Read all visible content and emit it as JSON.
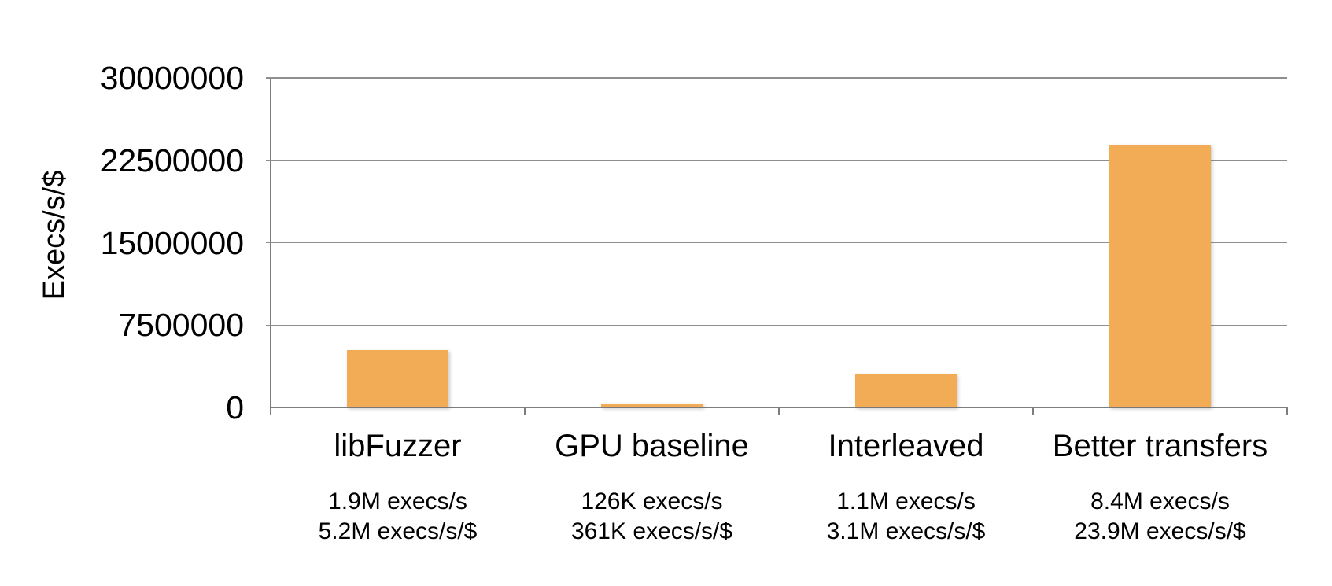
{
  "chart_data": {
    "type": "bar",
    "title": "",
    "ylabel": "Execs/s/$",
    "xlabel": "",
    "ylim": [
      0,
      30000000
    ],
    "grid": true,
    "legend": "none",
    "yticks": [
      {
        "label": "30000000",
        "value": 30000000
      },
      {
        "label": "22500000",
        "value": 22500000
      },
      {
        "label": "15000000",
        "value": 15000000
      },
      {
        "label": "7500000",
        "value": 7500000
      },
      {
        "label": "0",
        "value": 0
      }
    ],
    "categories": [
      "libFuzzer",
      "GPU baseline",
      "Interleaved",
      "Better transfers"
    ],
    "values": [
      5200000,
      361000,
      3100000,
      23900000
    ],
    "series": [
      {
        "name": "Execs/s/$",
        "values": [
          5200000,
          361000,
          3100000,
          23900000
        ]
      }
    ],
    "annotations": [
      {
        "line1": "1.9M execs/s",
        "line2": "5.2M execs/s/$"
      },
      {
        "line1": "126K execs/s",
        "line2": "361K execs/s/$"
      },
      {
        "line1": "1.1M execs/s",
        "line2": "3.1M execs/s/$"
      },
      {
        "line1": "8.4M execs/s",
        "line2": "23.9M execs/s/$"
      }
    ],
    "colors": {
      "bar": "#f2ac55",
      "gridline": "#8e8e8e",
      "axis": "#7d7d7d",
      "text": "#000000",
      "background": "#ffffff"
    }
  }
}
